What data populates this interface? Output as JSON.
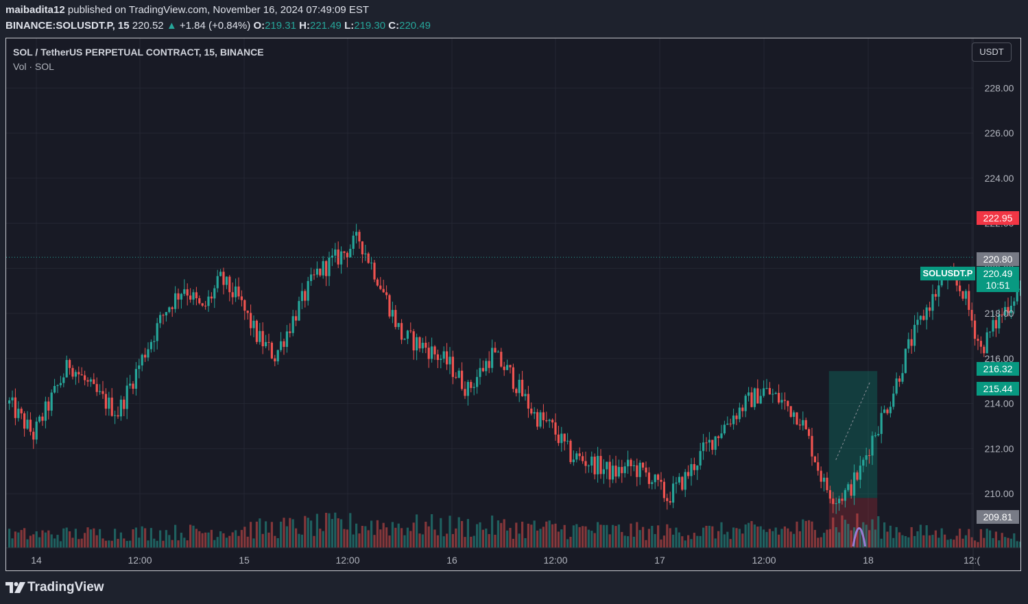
{
  "header": {
    "publisher": "maibadita12",
    "published_text": "published on TradingView.com, November 16, 2024 07:49:09 EST",
    "symbol": "BINANCE:SOLUSDT.P, 15",
    "last": "220.52",
    "change_arrow": "▲",
    "change": "+1.84 (+0.84%)",
    "o_label": "O:",
    "o": "219.31",
    "h_label": "H:",
    "h": "221.49",
    "l_label": "L:",
    "l": "219.30",
    "c_label": "C:",
    "c": "220.49"
  },
  "legend": {
    "title": "SOL / TetherUS PERPETUAL CONTRACT, 15, BINANCE",
    "volume": "Vol · SOL"
  },
  "unit_button": "USDT",
  "price_labels": {
    "stop": "222.95",
    "high_marker": "220.80",
    "symbol_tag": "SOLUSDT.P",
    "current": "220.49",
    "countdown": "10:51",
    "target": "216.32",
    "level": "215.44",
    "low_marker": "209.81"
  },
  "chart_data": {
    "type": "candlestick",
    "y_ticks": [
      "228.00",
      "226.00",
      "224.00",
      "222.00",
      "220.00",
      "218.00",
      "216.00",
      "214.00",
      "212.00",
      "210.00"
    ],
    "x_ticks": [
      "14",
      "12:00",
      "15",
      "12:00",
      "16",
      "12:00",
      "17",
      "12:00",
      "18",
      "12:("
    ],
    "ylim": [
      207.6,
      230.2
    ],
    "timeframe_minutes": 15,
    "close_path": [
      [
        0,
        214.0
      ],
      [
        8,
        212.6
      ],
      [
        20,
        215.8
      ],
      [
        28,
        214.5
      ],
      [
        36,
        213.6
      ],
      [
        45,
        216.3
      ],
      [
        52,
        218.2
      ],
      [
        58,
        219.2
      ],
      [
        64,
        218.1
      ],
      [
        70,
        219.5
      ],
      [
        76,
        218.6
      ],
      [
        82,
        217.0
      ],
      [
        88,
        216.1
      ],
      [
        96,
        218.3
      ],
      [
        102,
        219.8
      ],
      [
        110,
        220.6
      ],
      [
        116,
        221.3
      ],
      [
        122,
        219.6
      ],
      [
        130,
        217.0
      ],
      [
        138,
        216.5
      ],
      [
        146,
        215.7
      ],
      [
        152,
        214.6
      ],
      [
        160,
        216.2
      ],
      [
        166,
        215.3
      ],
      [
        174,
        213.5
      ],
      [
        180,
        212.9
      ],
      [
        186,
        211.7
      ],
      [
        194,
        211.3
      ],
      [
        200,
        210.9
      ],
      [
        206,
        211.2
      ],
      [
        212,
        210.8
      ],
      [
        218,
        209.8
      ],
      [
        224,
        210.7
      ],
      [
        230,
        211.9
      ],
      [
        238,
        213.2
      ],
      [
        244,
        214.0
      ],
      [
        250,
        214.6
      ],
      [
        256,
        214.1
      ],
      [
        262,
        213.4
      ],
      [
        266,
        212.0
      ],
      [
        270,
        210.4
      ],
      [
        274,
        209.8
      ],
      [
        278,
        210.1
      ],
      [
        282,
        211.0
      ],
      [
        286,
        212.5
      ],
      [
        292,
        214.2
      ],
      [
        298,
        216.5
      ],
      [
        304,
        218.2
      ],
      [
        310,
        219.6
      ],
      [
        316,
        219.0
      ],
      [
        322,
        216.4
      ],
      [
        328,
        217.8
      ],
      [
        334,
        219.0
      ],
      [
        340,
        219.4
      ],
      [
        346,
        220.4
      ],
      [
        350,
        221.1
      ],
      [
        356,
        220.2
      ],
      [
        362,
        219.6
      ],
      [
        368,
        219.1
      ],
      [
        374,
        218.9
      ],
      [
        380,
        218.4
      ],
      [
        386,
        218.8
      ],
      [
        390,
        217.0
      ],
      [
        394,
        218.4
      ],
      [
        398,
        219.8
      ],
      [
        400,
        220.49
      ]
    ],
    "volume_profile": [
      [
        0,
        0.5
      ],
      [
        60,
        0.6
      ],
      [
        110,
        0.9
      ],
      [
        160,
        0.8
      ],
      [
        220,
        0.6
      ],
      [
        260,
        0.7
      ],
      [
        275,
        1.0
      ],
      [
        300,
        0.6
      ],
      [
        340,
        0.4
      ],
      [
        390,
        0.4
      ],
      [
        396,
        1.9
      ],
      [
        400,
        0.6
      ]
    ],
    "positions": [
      {
        "type": "long",
        "entry": 209.81,
        "target": 215.44
      },
      {
        "type": "short",
        "entry": 220.8,
        "stop": 222.95,
        "target": 216.32
      }
    ],
    "last_price": 220.49
  }
}
